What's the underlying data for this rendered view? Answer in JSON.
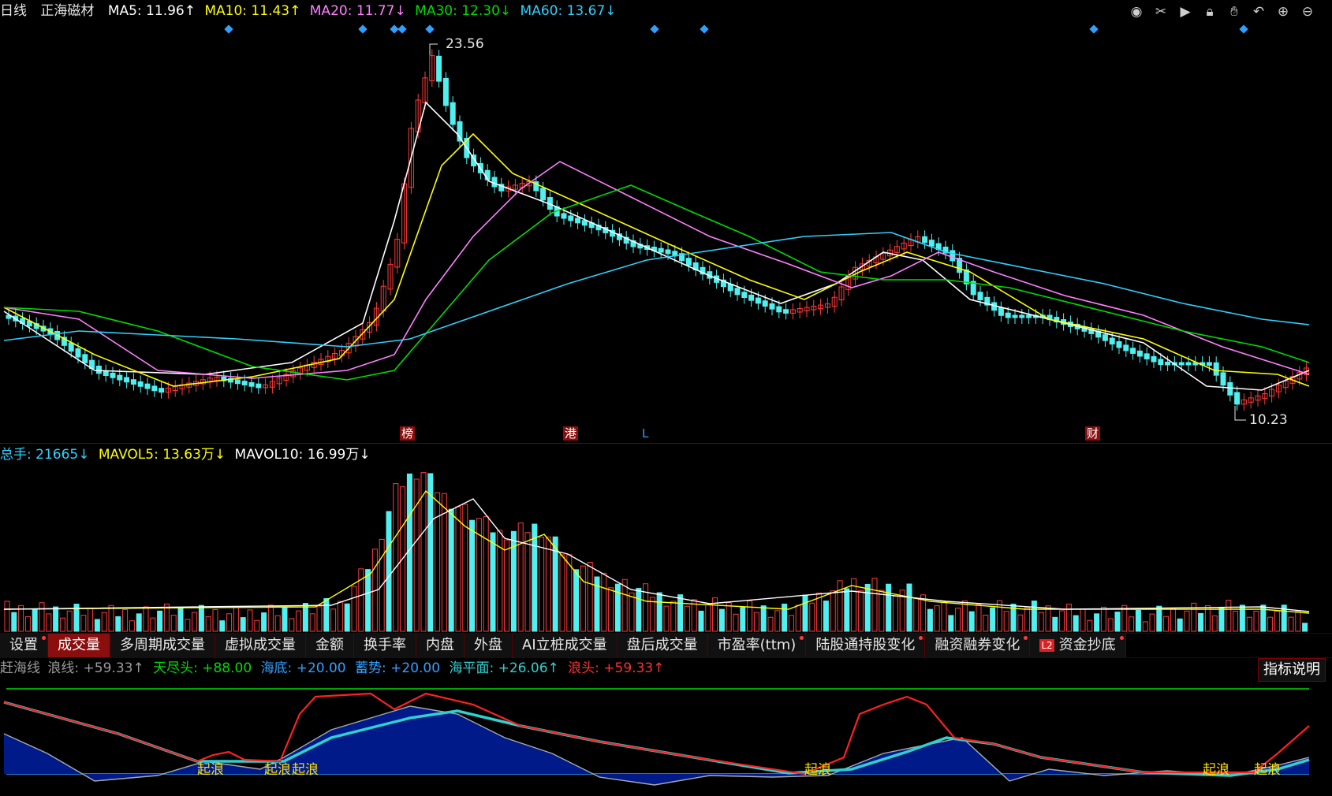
{
  "price_panel": {
    "period": "日线",
    "stock_name": "正海磁材",
    "ma": [
      {
        "label": "MA5: 11.96↑",
        "color": "#ffffff"
      },
      {
        "label": "MA10: 11.43↑",
        "color": "#ffff00"
      },
      {
        "label": "MA20: 11.77↓",
        "color": "#ff80ff"
      },
      {
        "label": "MA30: 12.30↓",
        "color": "#00dd00"
      },
      {
        "label": "MA60: 13.67↓",
        "color": "#30d0ff"
      }
    ],
    "high_label": "23.56",
    "low_label": "10.23",
    "markers": [
      {
        "text": "榜",
        "type": "box"
      },
      {
        "text": "港",
        "type": "box"
      },
      {
        "text": "L",
        "type": "plain"
      },
      {
        "text": "财",
        "type": "box"
      }
    ]
  },
  "toolbar": {
    "icons": [
      "eye-icon",
      "scissors-icon",
      "play-icon",
      "lock-icon",
      "hand-icon",
      "undo-icon",
      "zoom-in-icon",
      "zoom-out-icon"
    ]
  },
  "volume_panel": {
    "legend": [
      {
        "label": "总手: 21665↓",
        "color": "#30d0ff"
      },
      {
        "label": "MAVOL5: 13.63万↓",
        "color": "#ffff00"
      },
      {
        "label": "MAVOL10: 16.99万↓",
        "color": "#ffffff"
      }
    ]
  },
  "tabs": [
    {
      "label": "设置",
      "dot": true,
      "active": false
    },
    {
      "label": "成交量",
      "dot": false,
      "active": true
    },
    {
      "label": "多周期成交量",
      "dot": false,
      "active": false
    },
    {
      "label": "虚拟成交量",
      "dot": false,
      "active": false
    },
    {
      "label": "金额",
      "dot": false,
      "active": false
    },
    {
      "label": "换手率",
      "dot": false,
      "active": false
    },
    {
      "label": "内盘",
      "dot": false,
      "active": false
    },
    {
      "label": "外盘",
      "dot": false,
      "active": false
    },
    {
      "label": "AI立桩成交量",
      "dot": false,
      "active": false
    },
    {
      "label": "盘后成交量",
      "dot": false,
      "active": false
    },
    {
      "label": "市盈率(ttm)",
      "dot": true,
      "active": false
    },
    {
      "label": "陆股通持股变化",
      "dot": true,
      "active": false
    },
    {
      "label": "融资融券变化",
      "dot": true,
      "active": false
    },
    {
      "label": "资金抄底",
      "dot": true,
      "active": false,
      "badge": "L2"
    }
  ],
  "indicator_panel": {
    "legend": [
      {
        "label": "赶海线",
        "color": "#9a9a9a"
      },
      {
        "label": "浪线: +59.33↑",
        "color": "#9a9a9a"
      },
      {
        "label": "天尽头: +88.00",
        "color": "#00dd00"
      },
      {
        "label": "海底: +20.00",
        "color": "#30a0ff"
      },
      {
        "label": "蓄势: +20.00",
        "color": "#30a0ff"
      },
      {
        "label": "海平面: +26.06↑",
        "color": "#30d0d0"
      },
      {
        "label": "浪头: +59.33↑",
        "color": "#ff3030"
      }
    ],
    "explain_button": "指标说明",
    "signal_text": "起浪"
  }
}
